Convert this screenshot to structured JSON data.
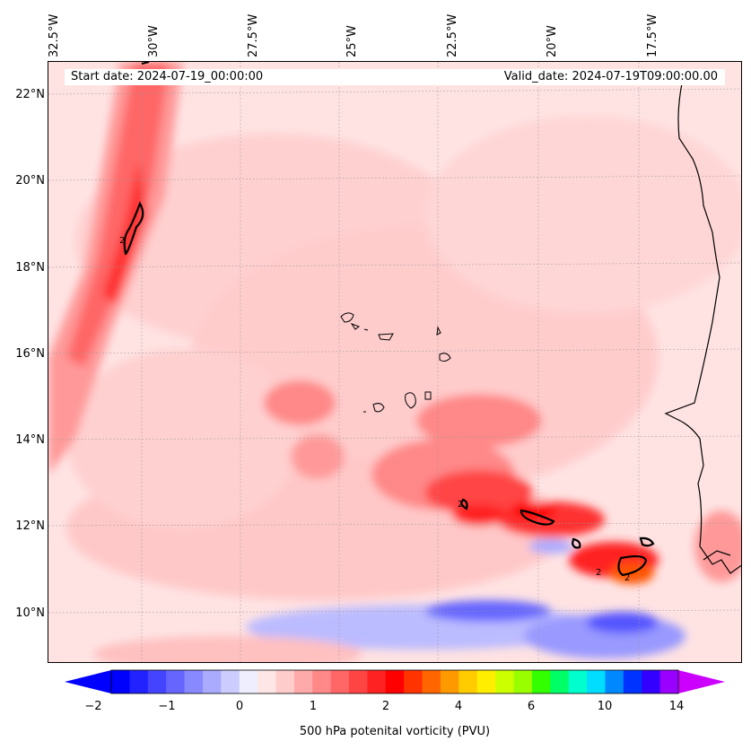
{
  "map": {
    "start_date": "Start date: 2024-07-19_00:00:00",
    "valid_date": "Valid_date: 2024-07-19T09:00:00.00",
    "lon_labels": [
      "32.5°W",
      "30°W",
      "27.5°W",
      "25°W",
      "22.5°W",
      "20°W",
      "17.5°W"
    ],
    "lat_labels": [
      "22°N",
      "20°N",
      "18°N",
      "16°N",
      "14°N",
      "12°N",
      "10°N"
    ],
    "contour_label": "2"
  },
  "colorbar": {
    "label": "500 hPa potenital vorticity (PVU)",
    "ticks": [
      "−2",
      "−1",
      "0",
      "1",
      "2",
      "4",
      "6",
      "10",
      "14"
    ],
    "colors": [
      "#0000ff",
      "#2222ff",
      "#4444ff",
      "#6666ff",
      "#8888ff",
      "#aaaaff",
      "#ccccff",
      "#eeeeff",
      "#ffe6e6",
      "#ffcccc",
      "#ffaaaa",
      "#ff8888",
      "#ff6666",
      "#ff4444",
      "#ff2222",
      "#ff0000",
      "#ff3300",
      "#ff6600",
      "#ff9900",
      "#ffcc00",
      "#ffee00",
      "#ccff00",
      "#99ff00",
      "#33ff00",
      "#00ff66",
      "#00ffcc",
      "#00ddff",
      "#0088ff",
      "#0033ff",
      "#3300ff",
      "#9900ff"
    ],
    "under_color": "#0000ff",
    "over_color": "#cc00ff"
  }
}
